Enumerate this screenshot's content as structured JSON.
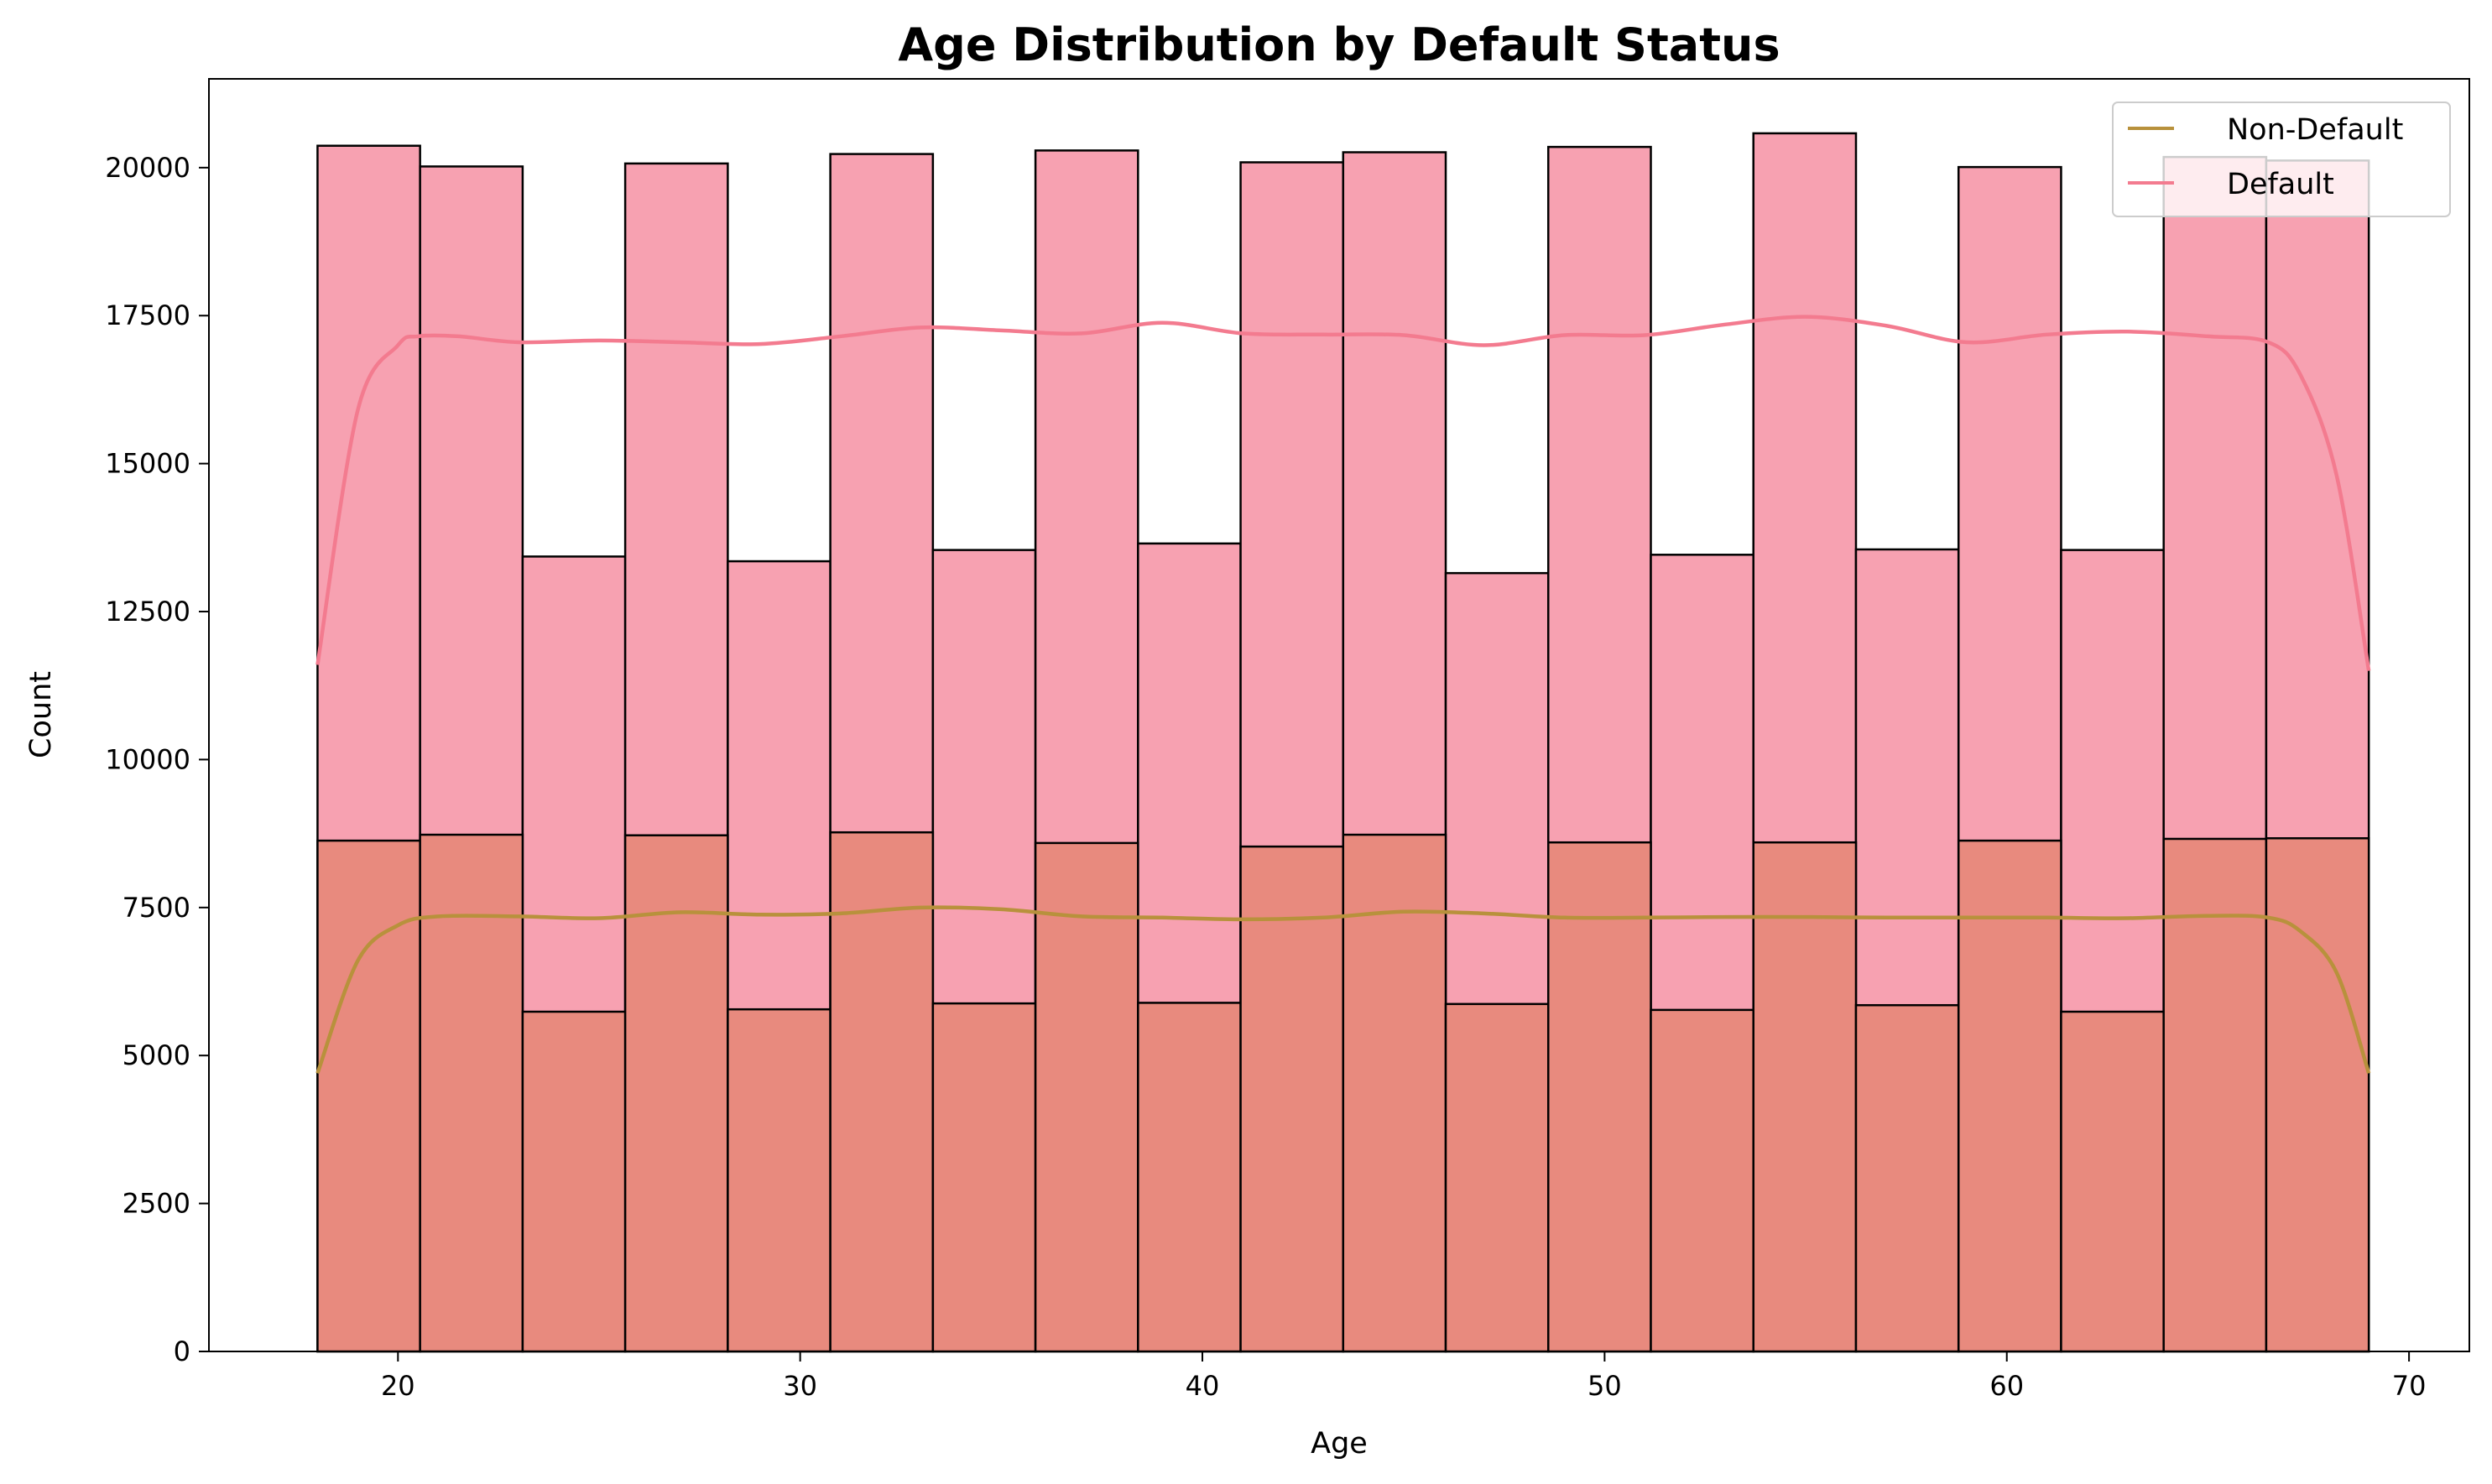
{
  "chart_data": {
    "type": "bar",
    "title": "Age Distribution by Default Status",
    "xlabel": "Age",
    "ylabel": "Count",
    "xlim": [
      15.3,
      71.5
    ],
    "ylim": [
      0,
      21500
    ],
    "x_ticks": [
      20,
      30,
      40,
      50,
      60,
      70
    ],
    "y_ticks": [
      0,
      2500,
      5000,
      7500,
      10000,
      12500,
      15000,
      17500,
      20000
    ],
    "grid": false,
    "legend_position": "top-right",
    "bin_edges": [
      18,
      20.55,
      23.1,
      25.65,
      28.2,
      30.75,
      33.3,
      35.85,
      38.4,
      40.95,
      43.5,
      46.05,
      48.6,
      51.15,
      53.7,
      56.25,
      58.8,
      61.35,
      63.9,
      66.45,
      69
    ],
    "series": [
      {
        "name": "Default",
        "color": "#f37b8f",
        "fill": "#f7a1b1",
        "values": [
          20370,
          20020,
          13430,
          20070,
          13350,
          20230,
          13540,
          20290,
          13650,
          20090,
          20260,
          13150,
          20350,
          13460,
          20580,
          13550,
          20010,
          13540,
          20180,
          20120
        ],
        "kde_x": [
          18,
          19,
          20,
          20.5,
          21.5,
          23,
          25,
          27,
          29,
          31,
          33,
          35,
          37,
          39,
          41,
          43,
          45,
          47,
          49,
          51,
          53,
          55,
          57,
          59,
          61,
          63,
          65,
          66.5,
          67.3,
          68.2,
          69
        ],
        "kde_y": [
          11600,
          15900,
          17000,
          17150,
          17150,
          17050,
          17080,
          17050,
          17020,
          17150,
          17300,
          17250,
          17200,
          17380,
          17200,
          17180,
          17170,
          17000,
          17170,
          17170,
          17350,
          17480,
          17330,
          17050,
          17180,
          17230,
          17150,
          17050,
          16500,
          14800,
          11500
        ]
      },
      {
        "name": "Non-Default",
        "color": "#b8913c",
        "fill": "#e88a7e",
        "values": [
          8630,
          8730,
          5740,
          8720,
          5780,
          8770,
          5880,
          8590,
          5890,
          8530,
          8730,
          5870,
          8600,
          5770,
          8600,
          5850,
          8630,
          5740,
          8660,
          8670
        ],
        "kde_x": [
          18,
          19,
          20,
          21,
          23,
          25,
          27,
          29,
          31,
          33,
          35,
          37,
          39,
          41,
          43,
          45,
          47,
          49,
          51,
          53,
          55,
          57,
          59,
          61,
          63,
          65,
          66.5,
          67.3,
          68.2,
          69
        ],
        "kde_y": [
          4700,
          6600,
          7200,
          7350,
          7350,
          7320,
          7420,
          7380,
          7400,
          7500,
          7470,
          7350,
          7330,
          7300,
          7330,
          7430,
          7400,
          7330,
          7330,
          7340,
          7340,
          7330,
          7330,
          7330,
          7320,
          7360,
          7330,
          7100,
          6400,
          4700
        ]
      }
    ]
  }
}
